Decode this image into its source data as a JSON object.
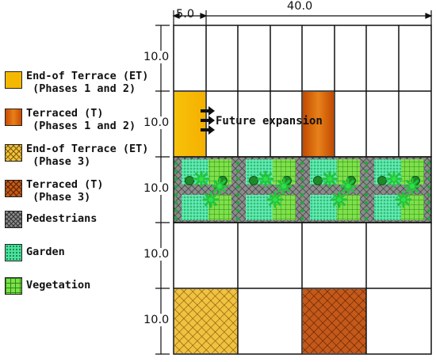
{
  "dimensions": {
    "top_small": "5.0",
    "top_total": "40.0",
    "rows": [
      "10.0",
      "10.0",
      "10.0",
      "10.0",
      "10.0"
    ]
  },
  "annotation": "Future expansion",
  "legend": [
    {
      "key": "et",
      "line1": "End-of Terrace (ET)",
      "line2": " (Phases 1 and 2)",
      "color": "#f5b800"
    },
    {
      "key": "t",
      "line1": "Terraced (T)",
      "line2": " (Phases 1 and 2)",
      "color": "#d4600a"
    },
    {
      "key": "et3",
      "line1": "End-of Terrace (ET)",
      "line2": " (Phase 3)",
      "color": "#f0c040"
    },
    {
      "key": "t3",
      "line1": "Terraced (T)",
      "line2": " (Phase 3)",
      "color": "#c25a1a"
    },
    {
      "key": "ped",
      "line1": "Pedestrians",
      "line2": "",
      "color": "#8a8a8a"
    },
    {
      "key": "gar",
      "line1": "Garden",
      "line2": "",
      "color": "#4fe0a0"
    },
    {
      "key": "veg",
      "line1": "Vegetation",
      "line2": "",
      "color": "#7ee04a"
    }
  ]
}
